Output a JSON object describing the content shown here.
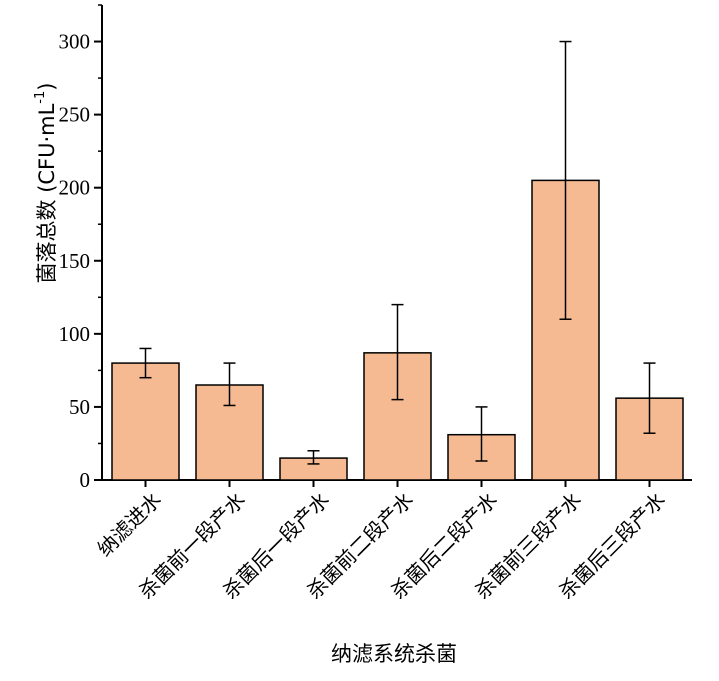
{
  "chart_data": {
    "type": "bar",
    "categories": [
      "纳滤进水",
      "杀菌前一段产水",
      "杀菌后一段产水",
      "杀菌前二段产水",
      "杀菌后二段产水",
      "杀菌前三段产水",
      "杀菌后三段产水"
    ],
    "values": [
      80,
      65,
      15,
      87,
      31,
      205,
      56
    ],
    "error_low": [
      70,
      51,
      11,
      55,
      13,
      110,
      32
    ],
    "error_high": [
      90,
      80,
      20,
      120,
      50,
      300,
      80
    ],
    "xlabel": "纳滤系统杀菌",
    "ylabel_main": "菌落总数 (CFU·mL",
    "ylabel_sup": "-1",
    "ylabel_tail": ")",
    "ylim": [
      0,
      325
    ],
    "yticks": [
      0,
      50,
      100,
      150,
      200,
      250,
      300
    ],
    "bar_color": "#F5BA92",
    "bar_stroke": "#000000",
    "grid": false
  }
}
